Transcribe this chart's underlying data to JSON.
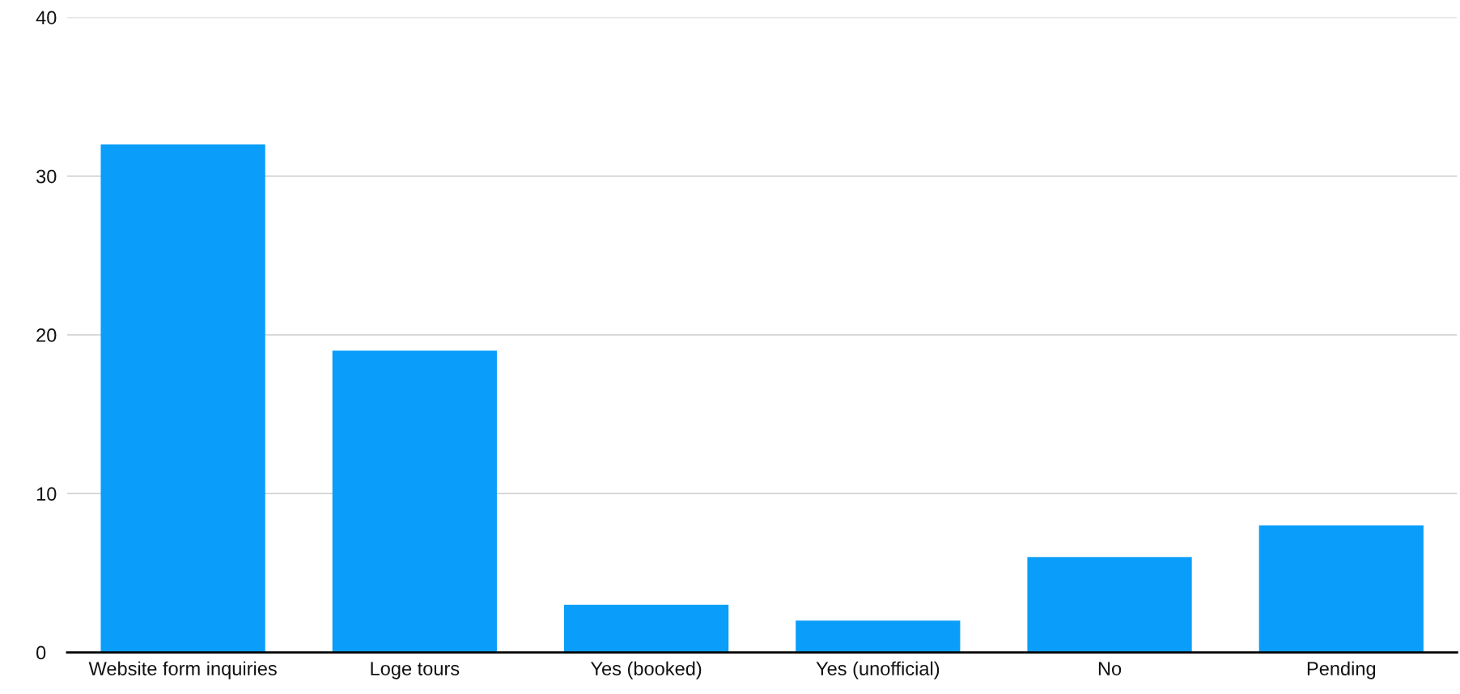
{
  "chart_data": {
    "type": "bar",
    "categories": [
      "Website form inquiries",
      "Loge tours",
      "Yes (booked)",
      "Yes (unofficial)",
      "No",
      "Pending"
    ],
    "values": [
      32,
      19,
      3,
      2,
      6,
      8
    ],
    "color": "#0a9efa",
    "ylim": [
      0,
      40
    ],
    "yticks": [
      0,
      10,
      20,
      30,
      40
    ],
    "grid": "y"
  }
}
